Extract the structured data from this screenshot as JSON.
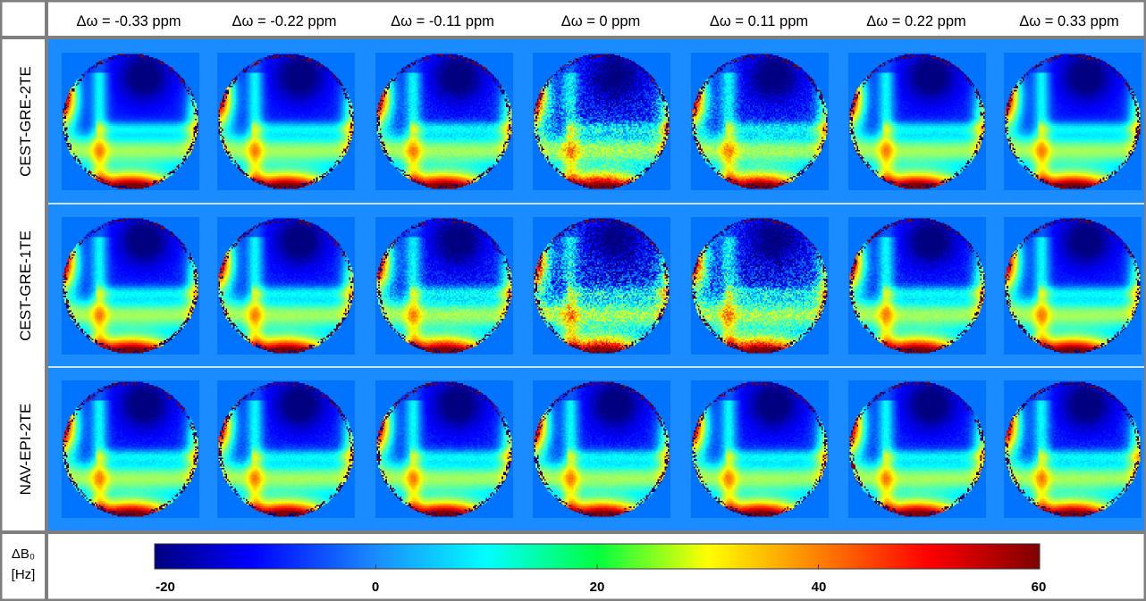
{
  "columns": [
    "Δω = -0.33 ppm",
    "Δω = -0.22 ppm",
    "Δω = -0.11 ppm",
    "Δω = 0 ppm",
    "Δω = 0.11 ppm",
    "Δω = 0.22 ppm",
    "Δω = 0.33 ppm"
  ],
  "rows": [
    {
      "label": "CEST-GRE-2TE",
      "noise": [
        0.05,
        0.08,
        0.18,
        0.65,
        0.35,
        0.1,
        0.06
      ]
    },
    {
      "label": "CEST-GRE-1TE",
      "noise": [
        0.1,
        0.12,
        0.3,
        0.9,
        0.8,
        0.18,
        0.1
      ]
    },
    {
      "label": "NAV-EPI-2TE",
      "noise": [
        0.12,
        0.12,
        0.12,
        0.14,
        0.12,
        0.12,
        0.14
      ]
    }
  ],
  "colorbar": {
    "label_line1": "ΔB₀",
    "label_line2": "[Hz]",
    "min": -20,
    "max": 60,
    "ticks": [
      "-20",
      "0",
      "20",
      "40",
      "60"
    ],
    "tick_values": [
      -20,
      0,
      20,
      40,
      60
    ],
    "colormap": "jet",
    "background_value": -1
  },
  "colors": {
    "background_blue": "#1a8cff",
    "grid_border": "#7f7f7f",
    "row_separator": "#ffffff"
  }
}
